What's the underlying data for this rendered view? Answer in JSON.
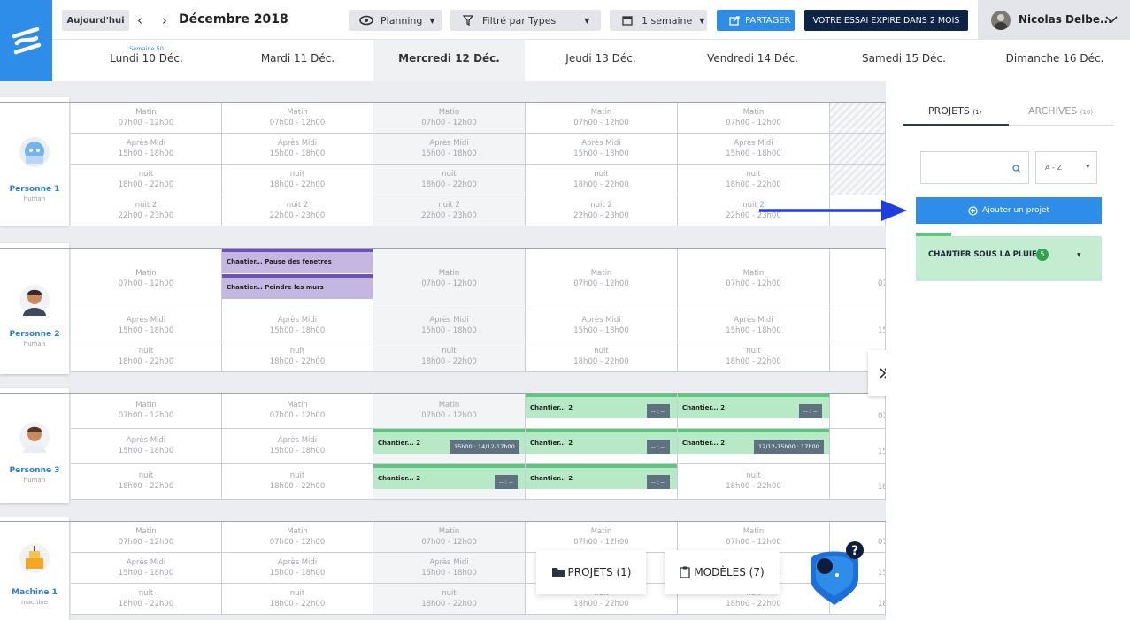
{
  "topbar": {
    "today": "Aujourd'hui",
    "month": "Décembre 2018",
    "view": "Planning",
    "filter": "Filtré par Types",
    "period": "1 semaine",
    "share": "PARTAGER",
    "trial": "VOTRE ESSAI EXPIRE DANS 2 MOIS",
    "user": "Nicolas Delbe..."
  },
  "week_label": "Semaine 50",
  "days": [
    "Lundi 10 Déc.",
    "Mardi 11 Déc.",
    "Mercredi 12 Déc.",
    "Jeudi 13 Déc.",
    "Vendredi 14 Déc.",
    "Samedi 15 Déc.",
    "Dimanche 16 Déc."
  ],
  "resources": [
    {
      "name": "Personne 1",
      "type": "human"
    },
    {
      "name": "Personne 2",
      "type": "human"
    },
    {
      "name": "Personne 3",
      "type": "human"
    },
    {
      "name": "Machine 1",
      "type": "machine"
    }
  ],
  "slots": {
    "matin": [
      "Matin",
      "07h00 - 12h00"
    ],
    "apres": [
      "Après Midi",
      "15h00 - 18h00"
    ],
    "nuit": [
      "nuit",
      "18h00 - 22h00"
    ],
    "nuit2": [
      "nuit 2",
      "22h00 - 23h00"
    ]
  },
  "partial_time": {
    "07": "07",
    "15": "15",
    "18": "18"
  },
  "tasks": [
    {
      "label": "Chantier... Pause des fenetres"
    },
    {
      "label": "Chantier... Peindre les murs"
    },
    {
      "label": "Chantier... 2",
      "time": "-- : --"
    },
    {
      "label": "Chantier... 2",
      "time": "-- : --"
    },
    {
      "label": "Chantier... 2",
      "time": "15h00 : 14/12-17h00"
    },
    {
      "label": "Chantier... 2",
      "time": "-- : --"
    },
    {
      "label": "Chantier... 2",
      "time": "12/12-15h00 : 17h00"
    },
    {
      "label": "Chantier... 2",
      "time": "-- : --"
    },
    {
      "label": "Chantier... 2",
      "time": "-- : --"
    }
  ],
  "sidebar": {
    "tab_projects": "PROJETS",
    "tab_projects_count": "(1)",
    "tab_archives": "ARCHIVES",
    "tab_archives_count": "(10)",
    "sort": "A - Z",
    "add_project": "Ajouter un projet",
    "project_name": "CHANTIER SOUS LA PLUIE",
    "project_count": "5"
  },
  "bottom": {
    "projects": "PROJETS (1)",
    "models": "MODÈLES (7)"
  },
  "colors": {
    "accent": "#2f8dea",
    "trial_bg": "#0d2446",
    "task_purple": "#c4b8e2",
    "task_green": "#b7e9c6",
    "project_green": "#c3ecd0",
    "arrow": "#1d3fe0"
  }
}
